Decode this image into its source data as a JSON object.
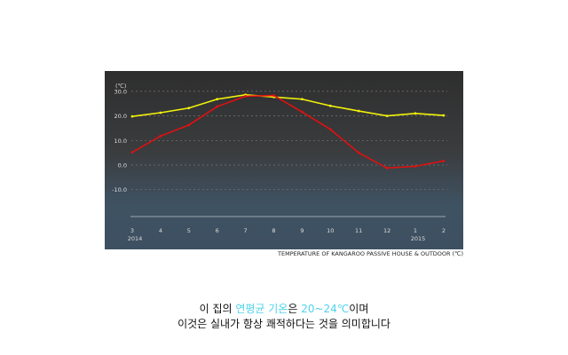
{
  "chart_data": {
    "type": "line",
    "unit_label": "(℃)",
    "x": [
      "3",
      "4",
      "5",
      "6",
      "7",
      "8",
      "9",
      "10",
      "11",
      "12",
      "1",
      "2"
    ],
    "year_labels": {
      "3": "2014",
      "1": "2015"
    },
    "series": [
      {
        "color": "#f2f20a",
        "values": [
          19.8,
          21.3,
          23.2,
          26.8,
          28.6,
          27.7,
          26.8,
          24.1,
          22.0,
          20.0,
          21.0,
          20.2
        ]
      },
      {
        "color": "#e01010",
        "values": [
          5.2,
          11.8,
          16.3,
          23.8,
          28.0,
          28.3,
          21.6,
          14.5,
          5.0,
          -1.2,
          -0.5,
          1.7
        ]
      }
    ],
    "yticks": [
      "30.0",
      "20.0",
      "10.0",
      "0.0",
      "-10.0"
    ],
    "ytick_values": [
      30,
      20,
      10,
      0,
      -10
    ],
    "ylim": [
      -20,
      35
    ],
    "grid": true,
    "caption": "TEMPERATURE OF KANGAROO PASSIVE HOUSE & OUTDOOR (℃)"
  },
  "text": {
    "line1_a": "이 집의 ",
    "line1_hl1": "연평균 기온",
    "line1_b": "은  ",
    "line1_hl2": "20~24℃",
    "line1_c": "이며",
    "line2": "이것은 실내가 항상 쾌적하다는 것을 의미합니다"
  }
}
